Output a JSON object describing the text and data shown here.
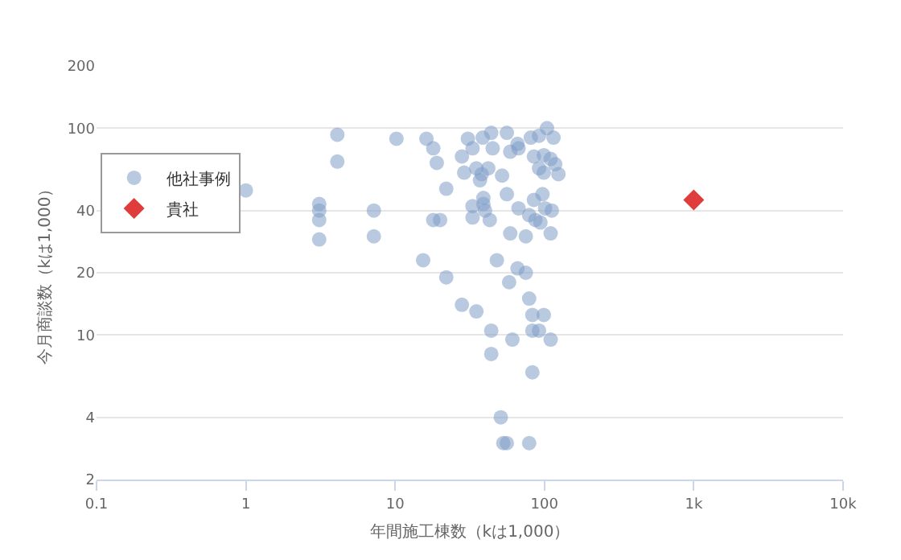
{
  "chart_data": {
    "type": "scatter",
    "xlabel": "年間施工棟数（kは1,000）",
    "ylabel": "今月商談数（kは1,000）",
    "log": "xy",
    "grid": "y",
    "legend": "top left",
    "xlim": [
      0.1,
      10000
    ],
    "xticks": [
      0.1,
      1,
      10,
      100,
      {
        "value": 1000,
        "label": "1k"
      },
      {
        "value": 10000,
        "label": "10k"
      }
    ],
    "ylim": [
      2,
      200
    ],
    "yticks": [
      2,
      4,
      10,
      20,
      40,
      100,
      200
    ],
    "series": [
      {
        "name": "他社事例",
        "color": "#7f9cc6",
        "marker": "circle",
        "x": [
          1,
          4.1,
          4.1,
          3.1,
          3.1,
          3.1,
          3.1,
          7.2,
          7.2,
          10.2,
          16.2,
          18,
          19,
          15.4,
          18,
          20,
          22,
          22,
          30.7,
          33,
          28,
          38.6,
          44,
          45,
          56,
          59,
          66,
          67,
          81,
          92,
          104,
          115,
          85,
          99,
          110,
          118,
          124,
          92,
          99,
          29,
          35,
          38,
          42,
          37,
          52,
          56,
          33,
          39,
          39,
          40,
          33,
          43,
          67,
          85,
          97,
          101,
          112,
          79,
          87,
          94,
          110,
          59,
          75,
          48,
          66,
          75,
          58,
          79,
          28,
          35,
          83,
          99,
          44,
          83,
          92,
          61,
          110,
          44,
          83,
          51,
          53,
          56,
          79
        ],
        "values": [
          50,
          93,
          69,
          43,
          40,
          36,
          29,
          40,
          30,
          89,
          89,
          80,
          68,
          23,
          36,
          36,
          51,
          19,
          89,
          80,
          73,
          90,
          95,
          80,
          95,
          77,
          84,
          80,
          90,
          92,
          100,
          90,
          73,
          74,
          71,
          67,
          60,
          64,
          61,
          61,
          64,
          60,
          64,
          56,
          59,
          48,
          42,
          46,
          43,
          40,
          37,
          36,
          41,
          45,
          48,
          41,
          40,
          38,
          36,
          35,
          31,
          31,
          30,
          23,
          21,
          20,
          18,
          15,
          14,
          13,
          12.5,
          12.5,
          10.5,
          10.5,
          10.5,
          9.5,
          9.5,
          8.1,
          6.6,
          4,
          3,
          3,
          3
        ]
      },
      {
        "name": "貴社",
        "color": "#e03c3c",
        "marker": "diamond",
        "x": [
          1000
        ],
        "values": [
          45
        ]
      }
    ]
  }
}
